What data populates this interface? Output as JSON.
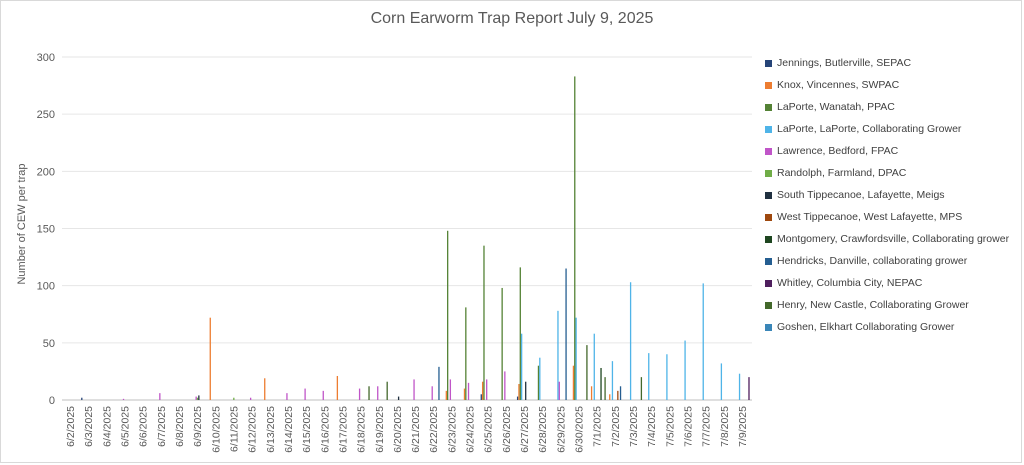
{
  "chart_data": {
    "type": "bar",
    "title": "Corn Earworm Trap Report July 9, 2025",
    "ylabel": "Number of CEW per trap",
    "xlabel": "",
    "ylim": [
      0,
      300
    ],
    "yticks": [
      0,
      50,
      100,
      150,
      200,
      250,
      300
    ],
    "grid": true,
    "legend_position": "right",
    "categories": [
      "6/2/2025",
      "6/3/2025",
      "6/4/2025",
      "6/5/2025",
      "6/6/2025",
      "6/7/2025",
      "6/8/2025",
      "6/9/2025",
      "6/10/2025",
      "6/11/2025",
      "6/12/2025",
      "6/13/2025",
      "6/14/2025",
      "6/15/2025",
      "6/16/2025",
      "6/17/2025",
      "6/18/2025",
      "6/19/2025",
      "6/20/2025",
      "6/21/2025",
      "6/22/2025",
      "6/23/2025",
      "6/24/2025",
      "6/25/2025",
      "6/26/2025",
      "6/27/2025",
      "6/28/2025",
      "6/29/2025",
      "6/30/2025",
      "7/1/2025",
      "7/2/2025",
      "7/3/2025",
      "7/4/2025",
      "7/5/2025",
      "7/6/2025",
      "7/7/2025",
      "7/8/2025",
      "7/9/2025"
    ],
    "series": [
      {
        "name": "Jennings, Butlerville, SEPAC",
        "color": "#264478",
        "values": [
          0,
          2,
          0,
          0,
          0,
          0,
          0,
          0,
          0,
          0,
          0,
          0,
          0,
          0,
          0,
          0,
          0,
          0,
          0,
          0,
          0,
          0,
          0,
          5,
          0,
          3,
          0,
          0,
          0,
          0,
          0,
          0,
          0,
          0,
          0,
          0,
          0,
          0
        ]
      },
      {
        "name": "Knox, Vincennes, SWPAC",
        "color": "#ED7D31",
        "values": [
          0,
          0,
          0,
          0,
          0,
          0,
          0,
          0,
          72,
          0,
          0,
          19,
          0,
          0,
          0,
          21,
          0,
          0,
          0,
          0,
          0,
          8,
          10,
          16,
          0,
          14,
          0,
          0,
          30,
          12,
          5,
          0,
          0,
          0,
          0,
          0,
          0,
          0
        ]
      },
      {
        "name": "LaPorte, Wanatah, PPAC",
        "color": "#548235",
        "values": [
          0,
          0,
          0,
          0,
          0,
          0,
          0,
          0,
          0,
          0,
          0,
          0,
          0,
          0,
          0,
          0,
          0,
          0,
          0,
          0,
          0,
          148,
          81,
          135,
          98,
          116,
          30,
          0,
          283,
          0,
          0,
          0,
          0,
          0,
          0,
          0,
          0,
          0
        ]
      },
      {
        "name": "LaPorte, LaPorte, Collaborating Grower",
        "color": "#4FB4E8",
        "values": [
          0,
          0,
          0,
          0,
          0,
          0,
          0,
          0,
          0,
          0,
          0,
          0,
          0,
          0,
          0,
          0,
          0,
          0,
          0,
          0,
          0,
          0,
          0,
          0,
          0,
          58,
          37,
          78,
          72,
          58,
          34,
          103,
          41,
          40,
          52,
          102,
          32,
          23
        ]
      },
      {
        "name": "Lawrence, Bedford, FPAC",
        "color": "#C055C8",
        "values": [
          0,
          0,
          0,
          1,
          0,
          6,
          0,
          3,
          0,
          0,
          2,
          0,
          6,
          10,
          8,
          0,
          10,
          12,
          0,
          18,
          12,
          18,
          15,
          18,
          25,
          0,
          0,
          16,
          0,
          0,
          0,
          0,
          0,
          0,
          0,
          0,
          0,
          0
        ]
      },
      {
        "name": "Randolph, Farmland, DPAC",
        "color": "#70AD47",
        "values": [
          0,
          0,
          0,
          0,
          0,
          0,
          0,
          2,
          0,
          2,
          0,
          0,
          0,
          0,
          0,
          0,
          0,
          0,
          0,
          0,
          0,
          0,
          0,
          0,
          0,
          0,
          0,
          0,
          0,
          0,
          0,
          0,
          0,
          0,
          0,
          0,
          0,
          0
        ]
      },
      {
        "name": "South Tippecanoe, Lafayette, Meigs",
        "color": "#203040",
        "values": [
          0,
          0,
          0,
          0,
          0,
          0,
          0,
          4,
          0,
          0,
          0,
          0,
          0,
          0,
          0,
          0,
          0,
          0,
          3,
          0,
          0,
          0,
          0,
          0,
          0,
          16,
          0,
          0,
          0,
          0,
          0,
          0,
          0,
          0,
          0,
          0,
          0,
          0
        ]
      },
      {
        "name": "West Tippecanoe, West Lafayette, MPS",
        "color": "#9E480E",
        "values": [
          0,
          0,
          0,
          0,
          0,
          0,
          0,
          0,
          0,
          0,
          0,
          0,
          0,
          0,
          0,
          0,
          0,
          0,
          0,
          0,
          0,
          0,
          0,
          0,
          0,
          0,
          0,
          0,
          0,
          0,
          8,
          0,
          0,
          0,
          0,
          0,
          0,
          0
        ]
      },
      {
        "name": "Montgomery, Crawfordsville, Collaborating grower",
        "color": "#1E4620",
        "values": [
          0,
          0,
          0,
          0,
          0,
          0,
          0,
          0,
          0,
          0,
          0,
          0,
          0,
          0,
          0,
          0,
          0,
          0,
          0,
          0,
          0,
          0,
          0,
          0,
          0,
          0,
          0,
          0,
          0,
          28,
          0,
          0,
          0,
          0,
          0,
          0,
          0,
          0
        ]
      },
      {
        "name": "Hendricks, Danville, collaborating grower",
        "color": "#255E91",
        "values": [
          0,
          0,
          0,
          0,
          0,
          0,
          0,
          0,
          0,
          0,
          0,
          0,
          0,
          0,
          0,
          0,
          0,
          0,
          0,
          0,
          29,
          0,
          0,
          0,
          0,
          0,
          0,
          115,
          0,
          0,
          12,
          0,
          0,
          0,
          0,
          0,
          0,
          0
        ]
      },
      {
        "name": "Whitley, Columbia City, NEPAC",
        "color": "#4F1F5E",
        "values": [
          0,
          0,
          0,
          0,
          0,
          0,
          0,
          0,
          0,
          0,
          0,
          0,
          0,
          0,
          0,
          0,
          0,
          0,
          0,
          0,
          0,
          0,
          0,
          0,
          0,
          0,
          0,
          0,
          0,
          0,
          0,
          0,
          0,
          0,
          0,
          0,
          0,
          20
        ]
      },
      {
        "name": "Henry, New Castle, Collaborating Grower",
        "color": "#43682B",
        "values": [
          0,
          0,
          0,
          0,
          0,
          0,
          0,
          0,
          0,
          0,
          0,
          0,
          0,
          0,
          0,
          0,
          12,
          16,
          0,
          0,
          0,
          0,
          0,
          0,
          0,
          0,
          0,
          0,
          48,
          20,
          0,
          20,
          0,
          0,
          0,
          0,
          0,
          0
        ]
      },
      {
        "name": "Goshen, Elkhart Collaborating Grower",
        "color": "#3A86B8",
        "values": [
          0,
          0,
          0,
          0,
          0,
          0,
          0,
          0,
          0,
          0,
          0,
          0,
          0,
          0,
          0,
          0,
          0,
          0,
          0,
          0,
          0,
          0,
          0,
          0,
          0,
          0,
          0,
          0,
          0,
          0,
          0,
          0,
          0,
          0,
          0,
          0,
          0,
          0
        ]
      }
    ]
  }
}
